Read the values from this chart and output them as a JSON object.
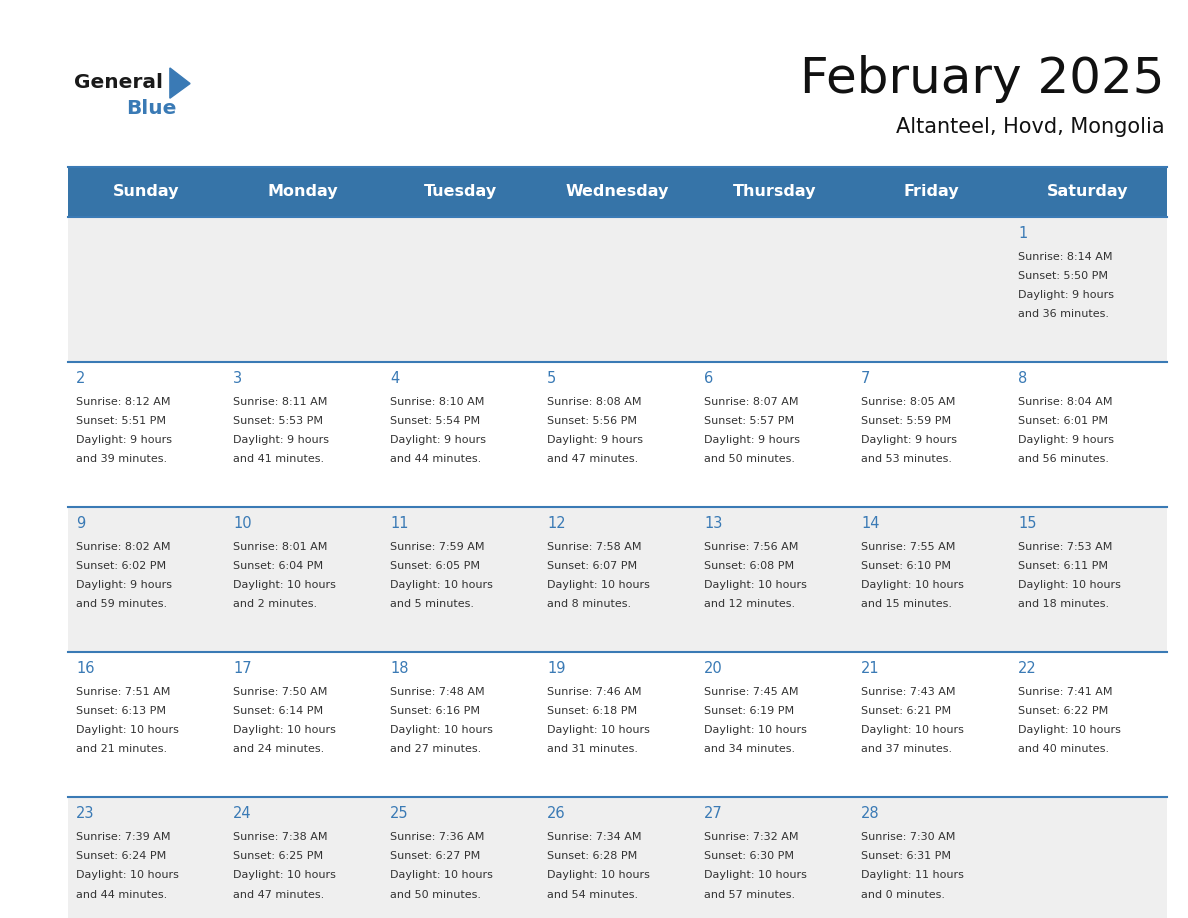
{
  "title": "February 2025",
  "subtitle": "Altanteel, Hovd, Mongolia",
  "header_bg": "#3674a8",
  "header_text": "#ffffff",
  "day_names": [
    "Sunday",
    "Monday",
    "Tuesday",
    "Wednesday",
    "Thursday",
    "Friday",
    "Saturday"
  ],
  "row_colors": [
    "#efefef",
    "#ffffff"
  ],
  "separator_color": "#3a7ab5",
  "text_color": "#333333",
  "day_num_color": "#3a7ab5",
  "calendar_data": [
    [
      null,
      null,
      null,
      null,
      null,
      null,
      {
        "day": 1,
        "sunrise": "8:14 AM",
        "sunset": "5:50 PM",
        "daylight": "9 hours",
        "daylight2": "and 36 minutes."
      }
    ],
    [
      {
        "day": 2,
        "sunrise": "8:12 AM",
        "sunset": "5:51 PM",
        "daylight": "9 hours",
        "daylight2": "and 39 minutes."
      },
      {
        "day": 3,
        "sunrise": "8:11 AM",
        "sunset": "5:53 PM",
        "daylight": "9 hours",
        "daylight2": "and 41 minutes."
      },
      {
        "day": 4,
        "sunrise": "8:10 AM",
        "sunset": "5:54 PM",
        "daylight": "9 hours",
        "daylight2": "and 44 minutes."
      },
      {
        "day": 5,
        "sunrise": "8:08 AM",
        "sunset": "5:56 PM",
        "daylight": "9 hours",
        "daylight2": "and 47 minutes."
      },
      {
        "day": 6,
        "sunrise": "8:07 AM",
        "sunset": "5:57 PM",
        "daylight": "9 hours",
        "daylight2": "and 50 minutes."
      },
      {
        "day": 7,
        "sunrise": "8:05 AM",
        "sunset": "5:59 PM",
        "daylight": "9 hours",
        "daylight2": "and 53 minutes."
      },
      {
        "day": 8,
        "sunrise": "8:04 AM",
        "sunset": "6:01 PM",
        "daylight": "9 hours",
        "daylight2": "and 56 minutes."
      }
    ],
    [
      {
        "day": 9,
        "sunrise": "8:02 AM",
        "sunset": "6:02 PM",
        "daylight": "9 hours",
        "daylight2": "and 59 minutes."
      },
      {
        "day": 10,
        "sunrise": "8:01 AM",
        "sunset": "6:04 PM",
        "daylight": "10 hours",
        "daylight2": "and 2 minutes."
      },
      {
        "day": 11,
        "sunrise": "7:59 AM",
        "sunset": "6:05 PM",
        "daylight": "10 hours",
        "daylight2": "and 5 minutes."
      },
      {
        "day": 12,
        "sunrise": "7:58 AM",
        "sunset": "6:07 PM",
        "daylight": "10 hours",
        "daylight2": "and 8 minutes."
      },
      {
        "day": 13,
        "sunrise": "7:56 AM",
        "sunset": "6:08 PM",
        "daylight": "10 hours",
        "daylight2": "and 12 minutes."
      },
      {
        "day": 14,
        "sunrise": "7:55 AM",
        "sunset": "6:10 PM",
        "daylight": "10 hours",
        "daylight2": "and 15 minutes."
      },
      {
        "day": 15,
        "sunrise": "7:53 AM",
        "sunset": "6:11 PM",
        "daylight": "10 hours",
        "daylight2": "and 18 minutes."
      }
    ],
    [
      {
        "day": 16,
        "sunrise": "7:51 AM",
        "sunset": "6:13 PM",
        "daylight": "10 hours",
        "daylight2": "and 21 minutes."
      },
      {
        "day": 17,
        "sunrise": "7:50 AM",
        "sunset": "6:14 PM",
        "daylight": "10 hours",
        "daylight2": "and 24 minutes."
      },
      {
        "day": 18,
        "sunrise": "7:48 AM",
        "sunset": "6:16 PM",
        "daylight": "10 hours",
        "daylight2": "and 27 minutes."
      },
      {
        "day": 19,
        "sunrise": "7:46 AM",
        "sunset": "6:18 PM",
        "daylight": "10 hours",
        "daylight2": "and 31 minutes."
      },
      {
        "day": 20,
        "sunrise": "7:45 AM",
        "sunset": "6:19 PM",
        "daylight": "10 hours",
        "daylight2": "and 34 minutes."
      },
      {
        "day": 21,
        "sunrise": "7:43 AM",
        "sunset": "6:21 PM",
        "daylight": "10 hours",
        "daylight2": "and 37 minutes."
      },
      {
        "day": 22,
        "sunrise": "7:41 AM",
        "sunset": "6:22 PM",
        "daylight": "10 hours",
        "daylight2": "and 40 minutes."
      }
    ],
    [
      {
        "day": 23,
        "sunrise": "7:39 AM",
        "sunset": "6:24 PM",
        "daylight": "10 hours",
        "daylight2": "and 44 minutes."
      },
      {
        "day": 24,
        "sunrise": "7:38 AM",
        "sunset": "6:25 PM",
        "daylight": "10 hours",
        "daylight2": "and 47 minutes."
      },
      {
        "day": 25,
        "sunrise": "7:36 AM",
        "sunset": "6:27 PM",
        "daylight": "10 hours",
        "daylight2": "and 50 minutes."
      },
      {
        "day": 26,
        "sunrise": "7:34 AM",
        "sunset": "6:28 PM",
        "daylight": "10 hours",
        "daylight2": "and 54 minutes."
      },
      {
        "day": 27,
        "sunrise": "7:32 AM",
        "sunset": "6:30 PM",
        "daylight": "10 hours",
        "daylight2": "and 57 minutes."
      },
      {
        "day": 28,
        "sunrise": "7:30 AM",
        "sunset": "6:31 PM",
        "daylight": "11 hours",
        "daylight2": "and 0 minutes."
      },
      null
    ]
  ]
}
